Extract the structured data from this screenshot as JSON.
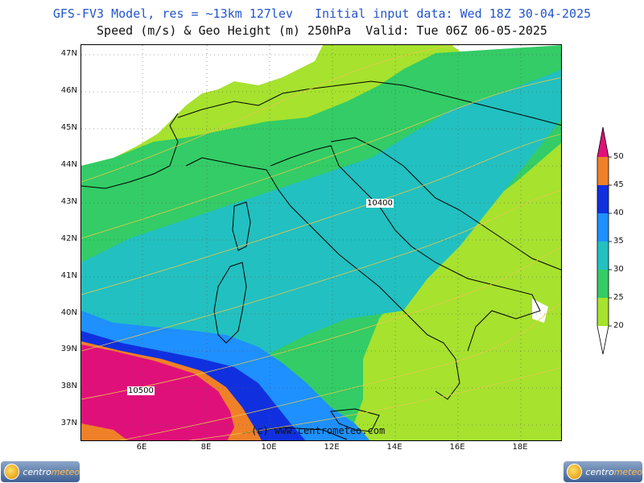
{
  "title_line1": "GFS-FV3 Model, res = ~13km 127lev   Initial input data: Wed 18Z 30-04-2025",
  "title_line2": "Speed (m/s) & Geo Height (m) 250hPa  Valid: Tue 06Z 06-05-2025",
  "latitude_labels": [
    "47N",
    "46N",
    "45N",
    "44N",
    "43N",
    "42N",
    "41N",
    "40N",
    "39N",
    "38N",
    "37N"
  ],
  "longitude_labels": [
    "6E",
    "8E",
    "10E",
    "12E",
    "14E",
    "16E",
    "18E"
  ],
  "contour_labels": [
    "10400",
    "10500"
  ],
  "credit": "(c) www.centrometeo.com",
  "legend": {
    "levels": [
      "50",
      "45",
      "40",
      "35",
      "30",
      "25",
      "20"
    ],
    "colors": {
      "20_25": "#a6e22e",
      "25_30": "#33cc66",
      "30_35": "#22c0c0",
      "35_40": "#1e90ff",
      "40_45": "#1030e0",
      "45_50": "#f08028",
      "50_plus": "#e0107a"
    }
  },
  "logo": {
    "text_a": "centro",
    "text_b": "meteo"
  }
}
